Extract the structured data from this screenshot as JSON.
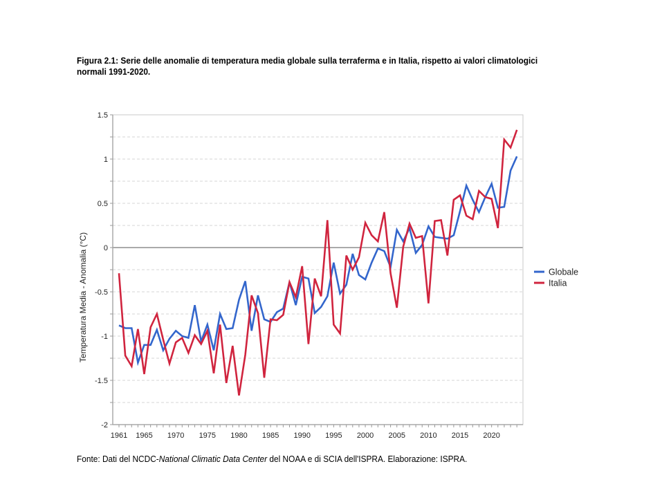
{
  "caption": "Figura 2.1: Serie delle anomalie di temperatura media globale sulla terraferma e in Italia, rispetto ai valori climatologici normali 1991-2020.",
  "source": {
    "prefix": "Fonte: Dati del NCDC-",
    "italic": "National Climatic Data Center",
    "suffix": " del NOAA e di SCIA dell'ISPRA. Elaborazione: ISPRA."
  },
  "chart_data": {
    "type": "line",
    "title": "",
    "xlabel": "",
    "ylabel": "Temperatura Media - Anomalia (°C)",
    "xlim": [
      1961,
      2024
    ],
    "ylim": [
      -2,
      1.5
    ],
    "x_tick_labels": [
      "1961",
      "1965",
      "1970",
      "1975",
      "1980",
      "1985",
      "1990",
      "1995",
      "2000",
      "2005",
      "2010",
      "2015",
      "2020"
    ],
    "y_tick_labels": [
      "1.5",
      "1",
      "0.5",
      "0",
      "-0.5",
      "-1",
      "-1.5",
      "-2"
    ],
    "y_ticks": [
      1.5,
      1,
      0.5,
      0,
      -0.5,
      -1,
      -1.5,
      -2
    ],
    "grid": "horizontal dashed every 0.25",
    "reference_line": 0,
    "legend_position": "right",
    "x": [
      1961,
      1962,
      1963,
      1964,
      1965,
      1966,
      1967,
      1968,
      1969,
      1970,
      1971,
      1972,
      1973,
      1974,
      1975,
      1976,
      1977,
      1978,
      1979,
      1980,
      1981,
      1982,
      1983,
      1984,
      1985,
      1986,
      1987,
      1988,
      1989,
      1990,
      1991,
      1992,
      1993,
      1994,
      1995,
      1996,
      1997,
      1998,
      1999,
      2000,
      2001,
      2002,
      2003,
      2004,
      2005,
      2006,
      2007,
      2008,
      2009,
      2010,
      2011,
      2012,
      2013,
      2014,
      2015,
      2016,
      2017,
      2018,
      2019,
      2020,
      2021,
      2022,
      2023,
      2024
    ],
    "series": [
      {
        "name": "Globale",
        "color": "#3366cc",
        "values": [
          -0.88,
          -0.91,
          -0.91,
          -1.3,
          -1.1,
          -1.1,
          -0.93,
          -1.16,
          -1.03,
          -0.94,
          -1.0,
          -1.02,
          -0.65,
          -1.06,
          -0.87,
          -1.16,
          -0.75,
          -0.92,
          -0.91,
          -0.59,
          -0.38,
          -0.94,
          -0.54,
          -0.81,
          -0.84,
          -0.73,
          -0.69,
          -0.39,
          -0.65,
          -0.33,
          -0.35,
          -0.74,
          -0.67,
          -0.55,
          -0.17,
          -0.52,
          -0.42,
          -0.07,
          -0.31,
          -0.36,
          -0.17,
          -0.01,
          -0.04,
          -0.22,
          0.2,
          0.07,
          0.22,
          -0.06,
          0.03,
          0.24,
          0.12,
          0.11,
          0.1,
          0.14,
          0.41,
          0.7,
          0.54,
          0.4,
          0.57,
          0.72,
          0.45,
          0.46,
          0.87,
          1.03
        ]
      },
      {
        "name": "Italia",
        "color": "#d0243e",
        "values": [
          -0.29,
          -1.22,
          -1.34,
          -0.92,
          -1.43,
          -0.9,
          -0.75,
          -1.04,
          -1.31,
          -1.07,
          -1.02,
          -1.19,
          -0.99,
          -1.09,
          -0.94,
          -1.42,
          -0.87,
          -1.53,
          -1.11,
          -1.67,
          -1.21,
          -0.54,
          -0.74,
          -1.47,
          -0.81,
          -0.82,
          -0.76,
          -0.39,
          -0.56,
          -0.21,
          -1.09,
          -0.35,
          -0.55,
          0.31,
          -0.87,
          -0.97,
          -0.09,
          -0.25,
          -0.11,
          0.28,
          0.14,
          0.07,
          0.4,
          -0.29,
          -0.68,
          0.01,
          0.27,
          0.11,
          0.13,
          -0.63,
          0.3,
          0.31,
          -0.09,
          0.54,
          0.59,
          0.36,
          0.32,
          0.64,
          0.57,
          0.55,
          0.22,
          1.22,
          1.13,
          1.33
        ]
      }
    ]
  }
}
